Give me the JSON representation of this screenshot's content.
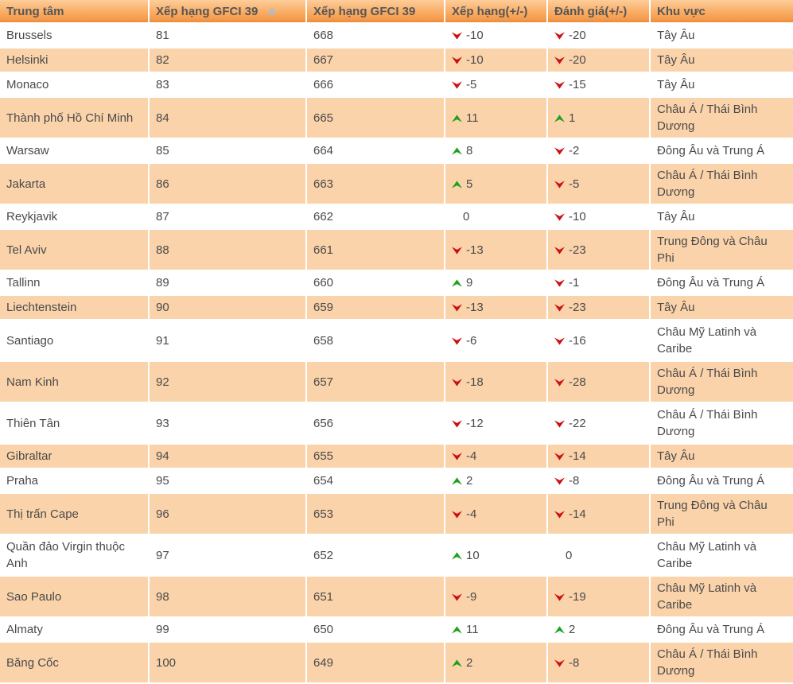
{
  "table": {
    "columns": [
      {
        "id": "center",
        "label": "Trung tâm"
      },
      {
        "id": "gfci_rank",
        "label": "Xếp hạng GFCI 39",
        "sorted": "ascending"
      },
      {
        "id": "gfci_rating",
        "label": "Xếp hạng GFCI 39"
      },
      {
        "id": "rank_change",
        "label": "Xếp hạng(+/-)"
      },
      {
        "id": "rating_change",
        "label": "Đánh giá(+/-)"
      },
      {
        "id": "region",
        "label": "Khu vực"
      }
    ],
    "rows": [
      {
        "center": "Brussels",
        "gfci_rank": "81",
        "gfci_rating": "668",
        "rank_change": {
          "dir": "down",
          "value": "-10"
        },
        "rating_change": {
          "dir": "down",
          "value": "-20"
        },
        "region": "Tây Âu"
      },
      {
        "center": "Helsinki",
        "gfci_rank": "82",
        "gfci_rating": "667",
        "rank_change": {
          "dir": "down",
          "value": "-10"
        },
        "rating_change": {
          "dir": "down",
          "value": "-20"
        },
        "region": "Tây Âu"
      },
      {
        "center": "Monaco",
        "gfci_rank": "83",
        "gfci_rating": "666",
        "rank_change": {
          "dir": "down",
          "value": "-5"
        },
        "rating_change": {
          "dir": "down",
          "value": "-15"
        },
        "region": "Tây Âu"
      },
      {
        "center": "Thành phố Hồ Chí Minh",
        "gfci_rank": "84",
        "gfci_rating": "665",
        "rank_change": {
          "dir": "up",
          "value": "11"
        },
        "rating_change": {
          "dir": "up",
          "value": "1"
        },
        "region": "Châu Á / Thái Bình Dương"
      },
      {
        "center": "Warsaw",
        "gfci_rank": "85",
        "gfci_rating": "664",
        "rank_change": {
          "dir": "up",
          "value": "8"
        },
        "rating_change": {
          "dir": "down",
          "value": "-2"
        },
        "region": "Đông Âu và Trung Á"
      },
      {
        "center": "Jakarta",
        "gfci_rank": "86",
        "gfci_rating": "663",
        "rank_change": {
          "dir": "up",
          "value": "5"
        },
        "rating_change": {
          "dir": "down",
          "value": "-5"
        },
        "region": "Châu Á / Thái Bình Dương"
      },
      {
        "center": "Reykjavik",
        "gfci_rank": "87",
        "gfci_rating": "662",
        "rank_change": {
          "dir": "none",
          "value": "0"
        },
        "rating_change": {
          "dir": "down",
          "value": "-10"
        },
        "region": "Tây Âu"
      },
      {
        "center": "Tel Aviv",
        "gfci_rank": "88",
        "gfci_rating": "661",
        "rank_change": {
          "dir": "down",
          "value": "-13"
        },
        "rating_change": {
          "dir": "down",
          "value": "-23"
        },
        "region": "Trung Đông và Châu Phi"
      },
      {
        "center": "Tallinn",
        "gfci_rank": "89",
        "gfci_rating": "660",
        "rank_change": {
          "dir": "up",
          "value": "9"
        },
        "rating_change": {
          "dir": "down",
          "value": "-1"
        },
        "region": "Đông Âu và Trung Á"
      },
      {
        "center": "Liechtenstein",
        "gfci_rank": "90",
        "gfci_rating": "659",
        "rank_change": {
          "dir": "down",
          "value": "-13"
        },
        "rating_change": {
          "dir": "down",
          "value": "-23"
        },
        "region": "Tây Âu"
      },
      {
        "center": "Santiago",
        "gfci_rank": "91",
        "gfci_rating": "658",
        "rank_change": {
          "dir": "down",
          "value": "-6"
        },
        "rating_change": {
          "dir": "down",
          "value": "-16"
        },
        "region": "Châu Mỹ Latinh và Caribe"
      },
      {
        "center": "Nam Kinh",
        "gfci_rank": "92",
        "gfci_rating": "657",
        "rank_change": {
          "dir": "down",
          "value": "-18"
        },
        "rating_change": {
          "dir": "down",
          "value": "-28"
        },
        "region": "Châu Á / Thái Bình Dương"
      },
      {
        "center": "Thiên Tân",
        "gfci_rank": "93",
        "gfci_rating": "656",
        "rank_change": {
          "dir": "down",
          "value": "-12"
        },
        "rating_change": {
          "dir": "down",
          "value": "-22"
        },
        "region": "Châu Á / Thái Bình Dương"
      },
      {
        "center": "Gibraltar",
        "gfci_rank": "94",
        "gfci_rating": "655",
        "rank_change": {
          "dir": "down",
          "value": "-4"
        },
        "rating_change": {
          "dir": "down",
          "value": "-14"
        },
        "region": "Tây Âu"
      },
      {
        "center": "Praha",
        "gfci_rank": "95",
        "gfci_rating": "654",
        "rank_change": {
          "dir": "up",
          "value": "2"
        },
        "rating_change": {
          "dir": "down",
          "value": "-8"
        },
        "region": "Đông Âu và Trung Á"
      },
      {
        "center": "Thị trấn Cape",
        "gfci_rank": "96",
        "gfci_rating": "653",
        "rank_change": {
          "dir": "down",
          "value": "-4"
        },
        "rating_change": {
          "dir": "down",
          "value": "-14"
        },
        "region": "Trung Đông và Châu Phi"
      },
      {
        "center": "Quần đảo Virgin thuộc Anh",
        "gfci_rank": "97",
        "gfci_rating": "652",
        "rank_change": {
          "dir": "up",
          "value": "10"
        },
        "rating_change": {
          "dir": "none",
          "value": "0"
        },
        "region": "Châu Mỹ Latinh và Caribe"
      },
      {
        "center": "Sao Paulo",
        "gfci_rank": "98",
        "gfci_rating": "651",
        "rank_change": {
          "dir": "down",
          "value": "-9"
        },
        "rating_change": {
          "dir": "down",
          "value": "-19"
        },
        "region": "Châu Mỹ Latinh và Caribe"
      },
      {
        "center": "Almaty",
        "gfci_rank": "99",
        "gfci_rating": "650",
        "rank_change": {
          "dir": "up",
          "value": "11"
        },
        "rating_change": {
          "dir": "up",
          "value": "2"
        },
        "region": "Đông Âu và Trung Á"
      },
      {
        "center": "Băng Cốc",
        "gfci_rank": "100",
        "gfci_rating": "649",
        "rank_change": {
          "dir": "up",
          "value": "2"
        },
        "rating_change": {
          "dir": "down",
          "value": "-8"
        },
        "region": "Châu Á / Thái Bình Dương"
      }
    ]
  },
  "icons": {
    "sort_ascending": "triangle-up-icon",
    "increase": "up-arrow-icon",
    "decrease": "down-arrow-icon"
  },
  "colors": {
    "header_top": "#fdcd9b",
    "header_bottom": "#ec8a3b",
    "header_text": "#55565a",
    "row_alt": "#fbd3aa",
    "row_white": "#ffffff",
    "body_text": "#4a4a4a",
    "up_green": "#1ca11c",
    "down_red": "#cc1010",
    "sort_arrow": "#aebccb"
  }
}
